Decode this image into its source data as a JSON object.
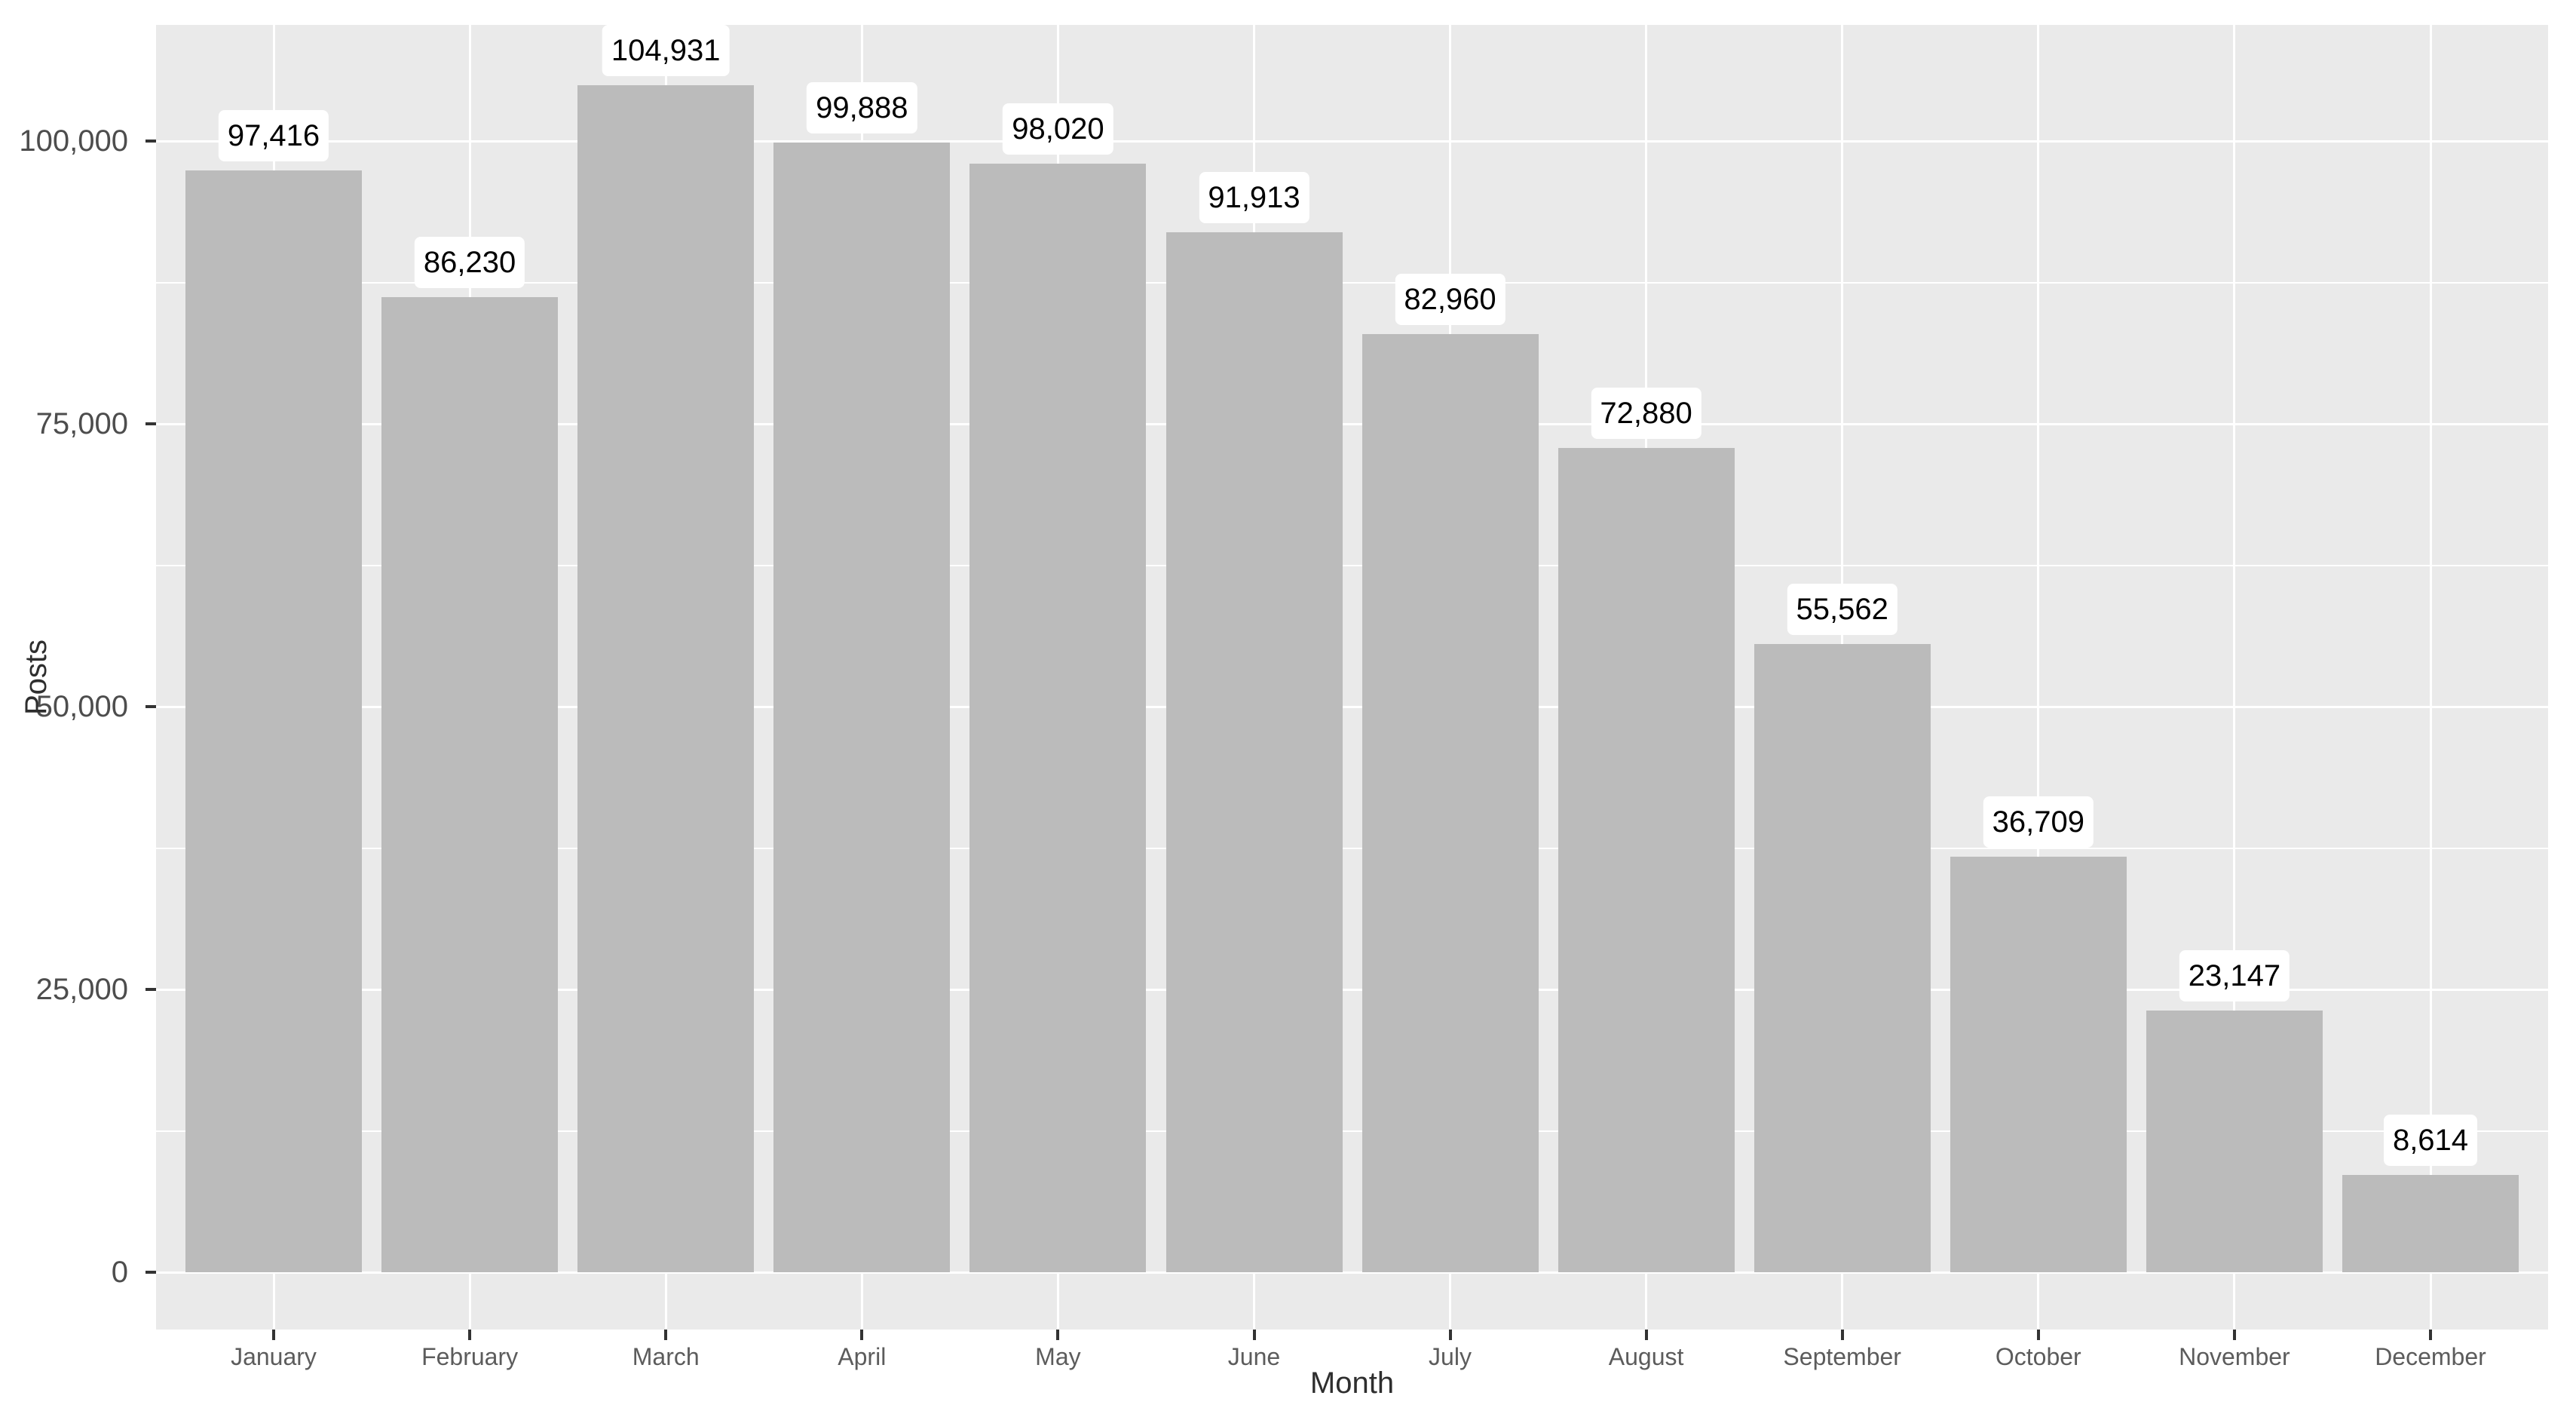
{
  "chart_data": {
    "type": "bar",
    "title": "",
    "xlabel": "Month",
    "ylabel": "Posts",
    "categories": [
      "January",
      "February",
      "March",
      "April",
      "May",
      "June",
      "July",
      "August",
      "September",
      "October",
      "November",
      "December"
    ],
    "values": [
      97416,
      86230,
      104931,
      99888,
      98020,
      91913,
      82960,
      72880,
      55562,
      36709,
      23147,
      8614
    ],
    "value_labels": [
      "97,416",
      "86,230",
      "104,931",
      "99,888",
      "98,020",
      "91,913",
      "82,960",
      "72,880",
      "55,562",
      "36,709",
      "23,147",
      "8,614"
    ],
    "yticks": [
      0,
      25000,
      50000,
      75000,
      100000
    ],
    "ytick_labels": [
      "0",
      "25,000",
      "50,000",
      "75,000",
      "100,000"
    ],
    "yminor_step": 12500,
    "ylim": [
      0,
      115000
    ],
    "grid": "on",
    "legend": "none",
    "style": "ggplot-gray",
    "colors": {
      "panel_bg": "#EAEAEA",
      "bar_fill": "#BBBBBB",
      "gridline": "#FFFFFF",
      "value_label_bg": "#FFFFFF",
      "value_label_text": "#000000",
      "y_axis_text": "#4D4D4D",
      "x_axis_text": "#5C5C5C",
      "axis_title_text": "#2E2E2E",
      "tick_mark": "#333333",
      "figure_bg": "#FFFFFF"
    }
  }
}
